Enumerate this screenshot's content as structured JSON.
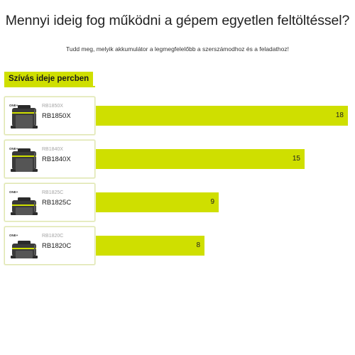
{
  "page": {
    "title": "Mennyi ideig fog működni a gépem egyetlen feltöltéssel?",
    "subtitle": "Tudd meg, melyik akkumulátor a legmegfelelőbb a szerszámodhoz és a feladathoz!",
    "section_label": "Szívás ideje percben"
  },
  "colors": {
    "accent": "#cfdf00",
    "card_border": "#dfe6b0"
  },
  "batteries": [
    {
      "code": "RB1850X",
      "name": "RB1850X",
      "minutes": 18,
      "max_minutes": 18,
      "icon": "battery-pack-icon",
      "brand_mark": "ONE+"
    },
    {
      "code": "RB1840X",
      "name": "RB1840X",
      "minutes": 15,
      "max_minutes": 18,
      "icon": "battery-pack-icon",
      "brand_mark": "ONE+"
    },
    {
      "code": "RB1825C",
      "name": "RB1825C",
      "minutes": 9,
      "max_minutes": 18,
      "icon": "battery-pack-icon",
      "brand_mark": "ONE+"
    },
    {
      "code": "RB1820C",
      "name": "RB1820C",
      "minutes": 8,
      "max_minutes": 18,
      "icon": "battery-pack-icon",
      "brand_mark": "ONE+"
    }
  ]
}
